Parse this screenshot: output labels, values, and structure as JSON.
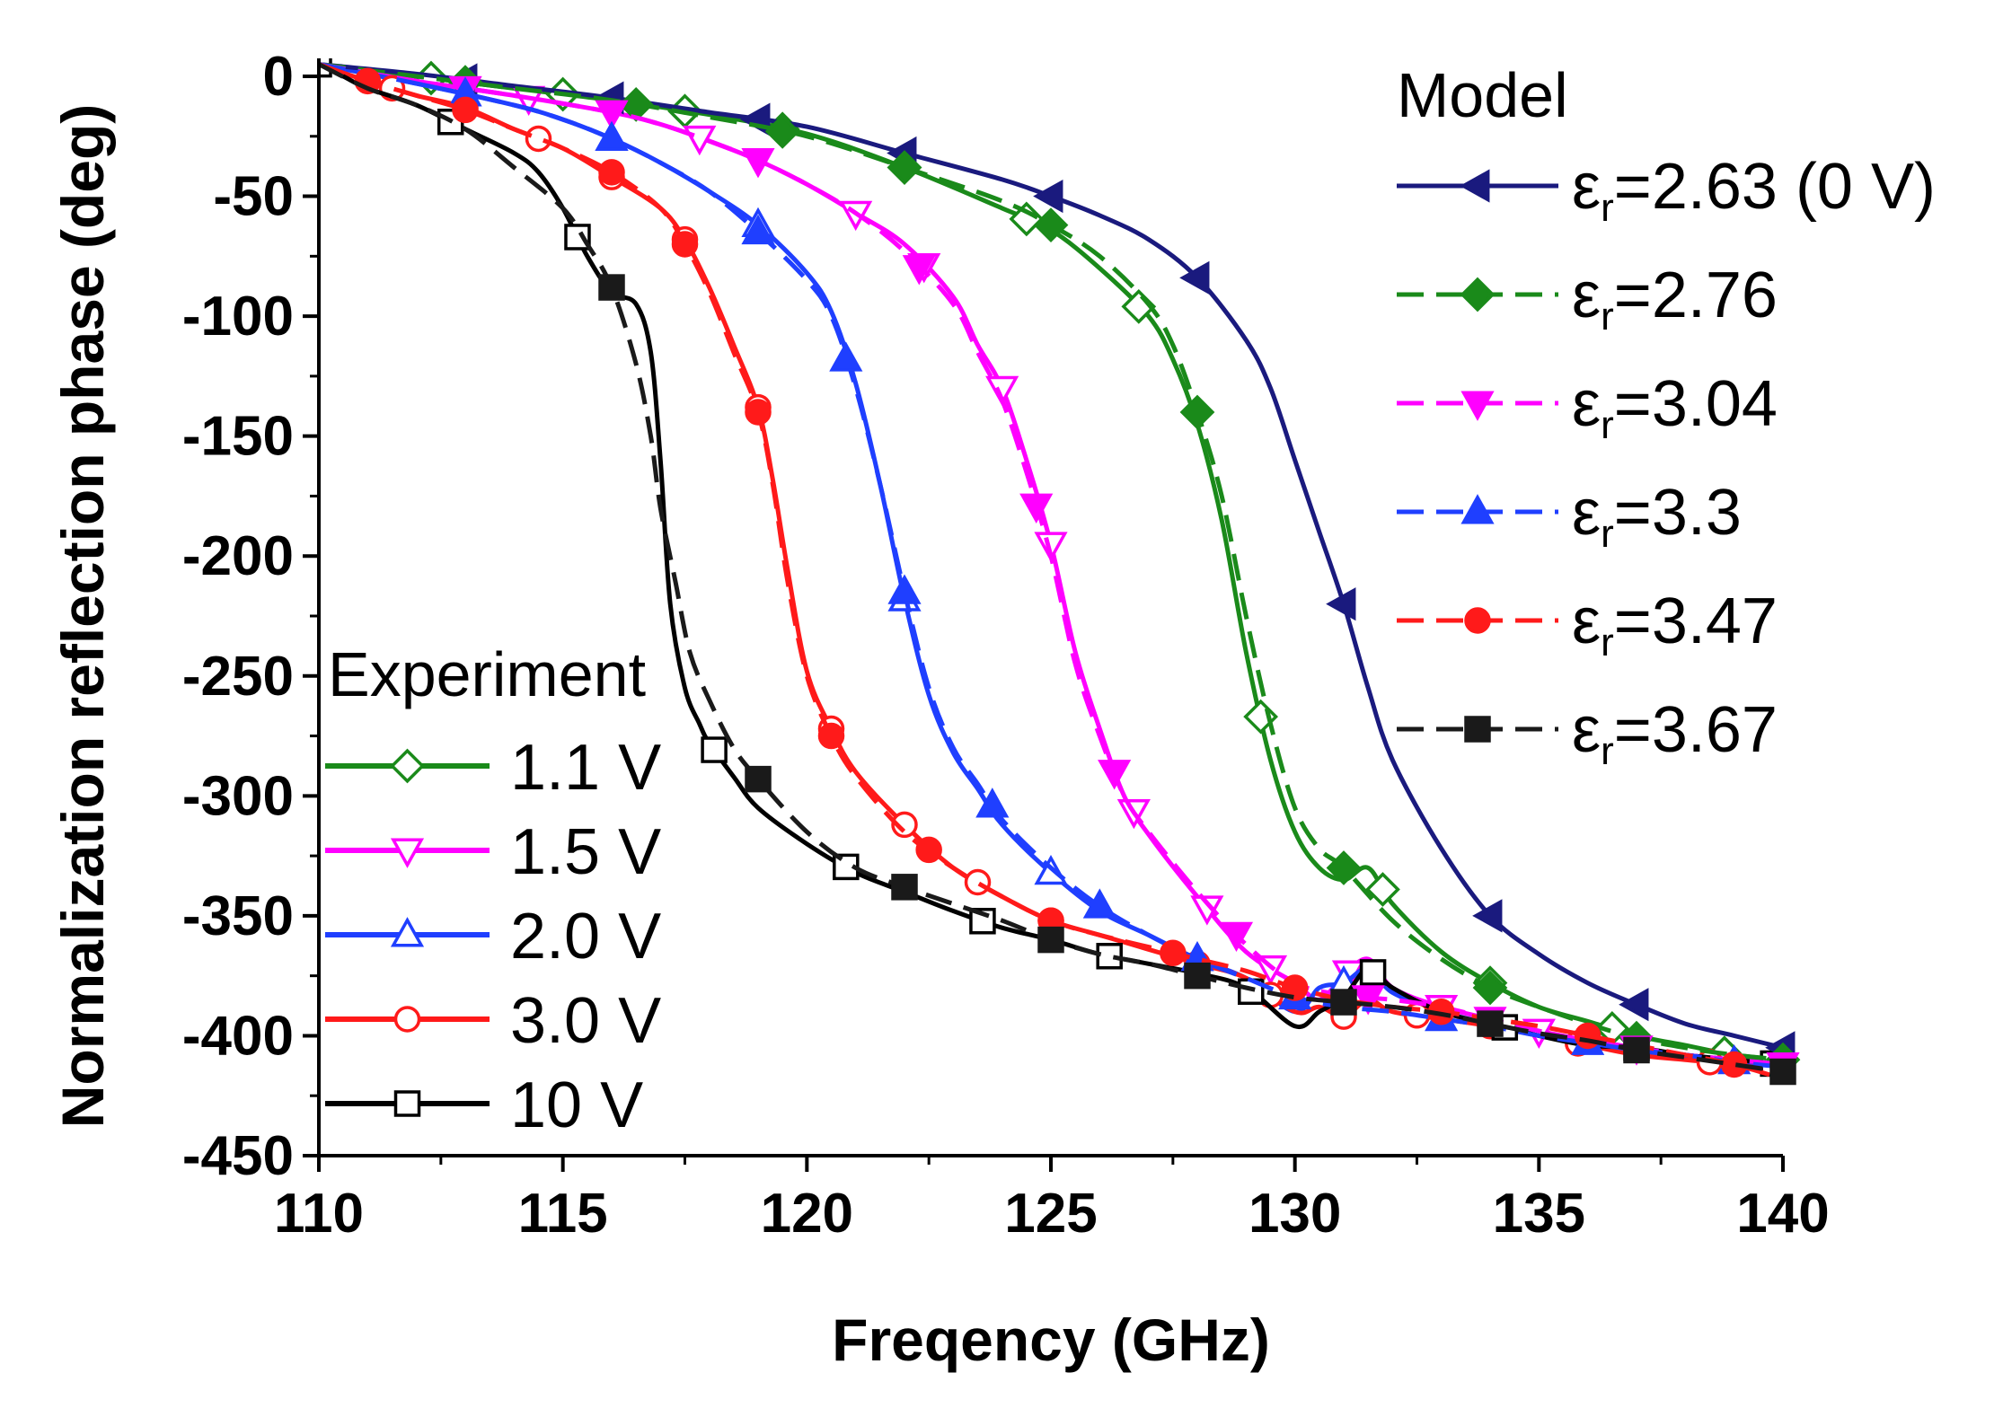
{
  "chart_data": {
    "type": "line",
    "title": "",
    "xlabel": "Freqency (GHz)",
    "ylabel": "Normalization reflection phase (deg)",
    "xlim": [
      110,
      140
    ],
    "ylim": [
      -450,
      0
    ],
    "xticks": [
      110,
      115,
      120,
      125,
      130,
      135,
      140
    ],
    "yticks": [
      0,
      -50,
      -100,
      -150,
      -200,
      -250,
      -300,
      -350,
      -400,
      -450
    ],
    "grid": false,
    "model_legend": {
      "title": "Model",
      "location": "top-right",
      "entries": [
        {
          "prefix": "ε",
          "sub": "r",
          "value": "=2.63 (0 V)",
          "series": 0
        },
        {
          "prefix": "ε",
          "sub": "r",
          "value": "=2.76",
          "series": 1
        },
        {
          "prefix": "ε",
          "sub": "r",
          "value": "=3.04",
          "series": 2
        },
        {
          "prefix": "ε",
          "sub": "r",
          "value": "=3.3",
          "series": 3
        },
        {
          "prefix": "ε",
          "sub": "r",
          "value": "=3.47",
          "series": 4
        },
        {
          "prefix": "ε",
          "sub": "r",
          "value": "=3.67",
          "series": 5
        }
      ]
    },
    "experiment_legend": {
      "title": "Experiment",
      "location": "bottom-left",
      "entries": [
        {
          "label": "1.1 V",
          "series": 6
        },
        {
          "label": "1.5 V",
          "series": 7
        },
        {
          "label": "2.0 V",
          "series": 8
        },
        {
          "label": "3.0 V",
          "series": 9
        },
        {
          "label": "10 V",
          "series": 10
        }
      ]
    },
    "series": [
      {
        "name": "Model εr=2.63 (0 V)",
        "color": "#1a1a7e",
        "dash": "solid",
        "marker": "triangle-left",
        "filled": true,
        "x": [
          110,
          112,
          114,
          116,
          118,
          120,
          122,
          124,
          125,
          126,
          127,
          128,
          129,
          129.5,
          130,
          130.5,
          131,
          131.5,
          132,
          133,
          134,
          135,
          136,
          137,
          138,
          139,
          140
        ],
        "y": [
          5,
          1,
          -4,
          -9,
          -15,
          -21,
          -32,
          -43,
          -50,
          -58,
          -68,
          -84,
          -110,
          -130,
          -160,
          -190,
          -220,
          -255,
          -285,
          -322,
          -350,
          -366,
          -378,
          -387,
          -395,
          -400,
          -405
        ],
        "markers_x": [
          113,
          116,
          119,
          122,
          125,
          128,
          131,
          134,
          137,
          140
        ]
      },
      {
        "name": "Model εr=2.76",
        "color": "#1a8a1a",
        "dash": "dash",
        "marker": "diamond",
        "filled": true,
        "x": [
          110,
          112,
          114,
          116,
          118,
          120,
          122,
          124,
          125,
          126,
          127,
          127.5,
          128,
          128.5,
          129,
          129.5,
          130,
          130.5,
          131,
          132,
          133,
          134,
          135,
          136,
          137,
          138,
          139,
          140
        ],
        "y": [
          5,
          0,
          -5,
          -10,
          -17,
          -25,
          -38,
          -52,
          -62,
          -75,
          -95,
          -112,
          -140,
          -175,
          -225,
          -270,
          -305,
          -322,
          -330,
          -352,
          -368,
          -380,
          -388,
          -395,
          -401,
          -405,
          -408,
          -410
        ],
        "markers_x": [
          113,
          116.5,
          119.5,
          122,
          125,
          128,
          131,
          134,
          137,
          140
        ]
      },
      {
        "name": "Model εr=3.04",
        "color": "#ff00ff",
        "dash": "dash",
        "marker": "triangle-down",
        "filled": true,
        "x": [
          110,
          112,
          114,
          116,
          117,
          118,
          119,
          120,
          121,
          122,
          123,
          123.5,
          124,
          124.5,
          125,
          125.5,
          126,
          126.5,
          127,
          128,
          129,
          130,
          131,
          132,
          133,
          134,
          135,
          136,
          137,
          138,
          139,
          140
        ],
        "y": [
          5,
          -2,
          -8,
          -15,
          -20,
          -27,
          -35,
          -45,
          -57,
          -73,
          -95,
          -115,
          -135,
          -165,
          -200,
          -245,
          -275,
          -300,
          -315,
          -340,
          -362,
          -378,
          -383,
          -385,
          -388,
          -393,
          -398,
          -402,
          -405,
          -408,
          -410,
          -412
        ],
        "markers_x": [
          113,
          116,
          119,
          122.3,
          124.7,
          126.3,
          128.8,
          131.5,
          134,
          137,
          140
        ]
      },
      {
        "name": "Model εr=3.3",
        "color": "#1f3fff",
        "dash": "dash",
        "marker": "triangle-up",
        "filled": true,
        "x": [
          110,
          112,
          114,
          115,
          116,
          117,
          118,
          119,
          120,
          120.5,
          121,
          121.5,
          122,
          122.5,
          123,
          123.5,
          124,
          125,
          126,
          127,
          128,
          129,
          130,
          131,
          132,
          133,
          134,
          135,
          136,
          137,
          138,
          139,
          140
        ],
        "y": [
          5,
          -3,
          -12,
          -18,
          -26,
          -36,
          -48,
          -65,
          -85,
          -100,
          -130,
          -170,
          -215,
          -255,
          -280,
          -295,
          -310,
          -330,
          -346,
          -358,
          -368,
          -376,
          -384,
          -388,
          -390,
          -393,
          -396,
          -400,
          -403,
          -406,
          -408,
          -411,
          -413
        ],
        "markers_x": [
          113,
          116,
          119,
          120.8,
          122,
          123.8,
          126,
          128,
          130,
          133,
          136,
          139
        ]
      },
      {
        "name": "Model εr=3.47",
        "color": "#ff1a1a",
        "dash": "dash",
        "marker": "circle",
        "filled": true,
        "x": [
          110,
          111,
          112,
          113,
          114,
          115,
          116,
          117,
          117.5,
          118,
          118.5,
          119,
          119.3,
          119.6,
          120,
          120.5,
          121,
          122,
          123,
          124,
          125,
          126,
          127,
          128,
          129,
          130,
          131,
          132,
          133,
          134,
          135,
          136,
          137,
          138,
          139,
          140
        ],
        "y": [
          5,
          -2,
          -8,
          -14,
          -22,
          -30,
          -40,
          -55,
          -70,
          -90,
          -115,
          -140,
          -170,
          -210,
          -250,
          -275,
          -292,
          -315,
          -330,
          -342,
          -352,
          -358,
          -363,
          -368,
          -373,
          -380,
          -385,
          -388,
          -390,
          -393,
          -396,
          -400,
          -404,
          -408,
          -412,
          -418
        ],
        "markers_x": [
          111,
          113,
          116,
          117.5,
          119,
          120.5,
          122.5,
          125,
          127.5,
          130,
          133,
          136,
          139
        ]
      },
      {
        "name": "Model εr=3.67",
        "color": "#1a1a1a",
        "dash": "dash",
        "marker": "square",
        "filled": true,
        "x": [
          110,
          111,
          112,
          113,
          114,
          115,
          115.5,
          116,
          116.5,
          116.8,
          117,
          117.3,
          117.6,
          118,
          118.5,
          119,
          120,
          121,
          122,
          123,
          124,
          125,
          126,
          127,
          128,
          129,
          130,
          131,
          132,
          133,
          134,
          135,
          136,
          137,
          138,
          139,
          140
        ],
        "y": [
          5,
          -5,
          -12,
          -22,
          -38,
          -55,
          -70,
          -88,
          -120,
          -150,
          -180,
          -210,
          -240,
          -260,
          -280,
          -293,
          -315,
          -330,
          -338,
          -345,
          -352,
          -360,
          -366,
          -370,
          -375,
          -380,
          -384,
          -386,
          -388,
          -391,
          -395,
          -399,
          -402,
          -406,
          -409,
          -412,
          -415
        ],
        "markers_x": [
          116,
          119,
          122,
          125,
          128,
          131,
          134,
          137,
          140
        ]
      },
      {
        "name": "Experiment 1.1 V",
        "color": "#1a8a1a",
        "dash": "solid",
        "marker": "diamond",
        "filled": false,
        "x": [
          110,
          112,
          114,
          116,
          118,
          120,
          122,
          124,
          125,
          126,
          127,
          127.5,
          128,
          128.5,
          129,
          129.5,
          130,
          130.5,
          131,
          131.5,
          132,
          133,
          134,
          135,
          136,
          137,
          138,
          139,
          140
        ],
        "y": [
          5,
          0,
          -5,
          -10,
          -16,
          -24,
          -38,
          -55,
          -64,
          -80,
          -100,
          -118,
          -145,
          -185,
          -240,
          -285,
          -315,
          -330,
          -335,
          -330,
          -345,
          -365,
          -378,
          -388,
          -394,
          -400,
          -404,
          -408,
          -410
        ],
        "markers_x": [
          112.3,
          115,
          117.5,
          119.5,
          122,
          124.5,
          126.8,
          129.3,
          131.8,
          134,
          136.5,
          138.8
        ]
      },
      {
        "name": "Experiment 1.5 V",
        "color": "#ff00ff",
        "dash": "solid",
        "marker": "triangle-down-open",
        "filled": false,
        "x": [
          110,
          112,
          114,
          116,
          117,
          118,
          119,
          120,
          121,
          122,
          123,
          123.5,
          124,
          124.5,
          125,
          125.5,
          126,
          126.5,
          127,
          128,
          129,
          130,
          130.5,
          131,
          131.5,
          132,
          133,
          134,
          135,
          136,
          137,
          138,
          139,
          140
        ],
        "y": [
          5,
          -2,
          -8,
          -15,
          -20,
          -27,
          -35,
          -45,
          -57,
          -70,
          -92,
          -112,
          -130,
          -160,
          -195,
          -240,
          -272,
          -300,
          -316,
          -342,
          -365,
          -378,
          -385,
          -375,
          -368,
          -380,
          -388,
          -393,
          -398,
          -402,
          -405,
          -408,
          -410,
          -412
        ],
        "markers_x": [
          113,
          114.3,
          117.8,
          121,
          122.4,
          124,
          125,
          126.7,
          128.2,
          129.5,
          131.1,
          133,
          135,
          137
        ]
      },
      {
        "name": "Experiment 2.0 V",
        "color": "#1f3fff",
        "dash": "solid",
        "marker": "triangle-up-open",
        "filled": false,
        "x": [
          110,
          112,
          114,
          115,
          116,
          117,
          118,
          119,
          120,
          120.5,
          121,
          121.5,
          122,
          122.5,
          123,
          123.5,
          124,
          125,
          126,
          127,
          128,
          129,
          130,
          130.5,
          131,
          131.5,
          132,
          133,
          134,
          135,
          136,
          137,
          138,
          139,
          140
        ],
        "y": [
          5,
          -3,
          -12,
          -18,
          -26,
          -36,
          -48,
          -62,
          -82,
          -98,
          -128,
          -170,
          -218,
          -258,
          -282,
          -297,
          -312,
          -332,
          -348,
          -358,
          -368,
          -376,
          -390,
          -380,
          -378,
          -372,
          -382,
          -390,
          -395,
          -400,
          -403,
          -406,
          -409,
          -411,
          -413
        ],
        "markers_x": [
          113,
          116,
          119,
          122,
          125,
          128,
          131
        ]
      },
      {
        "name": "Experiment 3.0 V",
        "color": "#ff1a1a",
        "dash": "solid",
        "marker": "circle-open",
        "filled": false,
        "x": [
          110,
          111,
          112,
          113,
          114,
          115,
          116,
          117,
          117.5,
          118,
          118.5,
          119,
          119.3,
          119.6,
          120,
          120.5,
          121,
          122,
          123,
          124,
          125,
          126,
          127,
          128,
          129,
          130,
          130.5,
          131,
          131.5,
          132,
          133,
          134,
          135,
          136,
          137,
          138,
          139,
          140
        ],
        "y": [
          5,
          -2,
          -8,
          -13,
          -22,
          -30,
          -42,
          -55,
          -68,
          -88,
          -112,
          -138,
          -168,
          -205,
          -248,
          -272,
          -290,
          -312,
          -330,
          -342,
          -352,
          -358,
          -364,
          -370,
          -376,
          -390,
          -388,
          -392,
          -385,
          -390,
          -393,
          -396,
          -400,
          -404,
          -408,
          -410,
          -412,
          -415
        ],
        "markers_x": [
          111.5,
          113,
          114.5,
          116,
          117.5,
          119,
          120.5,
          122,
          123.5,
          125,
          128,
          129.5,
          131,
          132.5,
          134,
          135.8,
          138.5
        ]
      },
      {
        "name": "Experiment 10 V",
        "color": "#000000",
        "dash": "solid",
        "marker": "square-open",
        "filled": false,
        "x": [
          110,
          110.5,
          111,
          112,
          113,
          114,
          114.5,
          115,
          115.5,
          116,
          116.5,
          116.8,
          117,
          117.2,
          117.5,
          117.8,
          118,
          118.5,
          119,
          120,
          121,
          122,
          123,
          124,
          125,
          126,
          127,
          128,
          129,
          130,
          130.5,
          131,
          131.5,
          132,
          133,
          134,
          135,
          136,
          137,
          138,
          139,
          140
        ],
        "y": [
          5,
          0,
          -5,
          -12,
          -22,
          -32,
          -40,
          -55,
          -75,
          -90,
          -95,
          -115,
          -160,
          -220,
          -255,
          -270,
          -278,
          -292,
          -305,
          -320,
          -332,
          -340,
          -348,
          -355,
          -360,
          -366,
          -370,
          -374,
          -380,
          -396,
          -390,
          -384,
          -372,
          -380,
          -390,
          -395,
          -400,
          -404,
          -405,
          -408,
          -410,
          -412
        ],
        "markers_x": [
          110,
          112.7,
          115.3,
          118.1,
          120.8,
          123.6,
          126.2,
          129.1,
          131.6,
          134.3,
          137,
          139.8
        ]
      }
    ]
  }
}
